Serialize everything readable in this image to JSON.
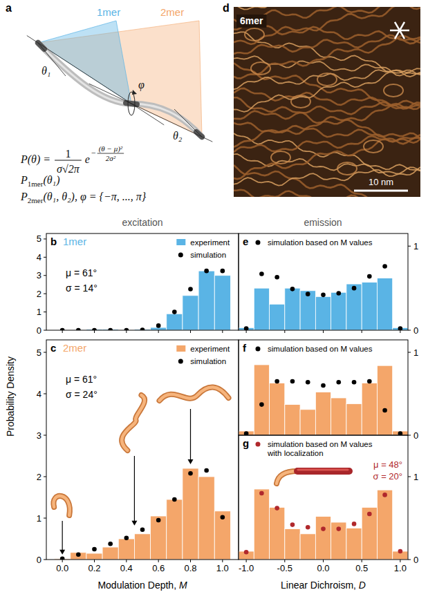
{
  "figure": {
    "column_titles": [
      "excitation",
      "emission"
    ],
    "y_title": "Probability Density"
  },
  "diagram": {
    "panel": "a",
    "regions": [
      {
        "label": "1mer",
        "color": "#5ab4e5"
      },
      {
        "label": "2mer",
        "color": "#f4a66a"
      }
    ],
    "angles": [
      "θ₁",
      "θ₂",
      "φ"
    ],
    "formula": {
      "lhs": "P(θ) =",
      "numerator": "1",
      "denominator": "σ√2π",
      "base": "e",
      "exponent_sign": "−",
      "exponent_numerator": "(θ − μ)²",
      "exponent_denominator": "2σ²"
    },
    "distributions": [
      {
        "symbol": "P",
        "subscript": "1mer",
        "args": "(θ₁)"
      },
      {
        "symbol": "P",
        "subscript": "2mer",
        "args": "(θ₁, θ₂), φ = {−π, ..., π}"
      }
    ]
  },
  "image": {
    "panel": "d",
    "label": "6mer",
    "scale_bar": "10 nm"
  },
  "chart_data": [
    {
      "type": "histogram",
      "panel": "b",
      "title": "1mer",
      "bins": [
        -0.05,
        0.05,
        0.15,
        0.25,
        0.35,
        0.45,
        0.55,
        0.65,
        0.75,
        0.85,
        0.95,
        1.05
      ],
      "series": [
        {
          "name": "experiment",
          "type": "bar",
          "color": "#5ab4e5",
          "values": [
            0,
            0,
            0.05,
            0.05,
            0.02,
            0.05,
            0.15,
            0.9,
            1.9,
            3.25,
            3.0
          ]
        },
        {
          "name": "simulation",
          "type": "scatter",
          "color": "#000000",
          "marker": "circle",
          "x": [
            0,
            0.1,
            0.2,
            0.3,
            0.4,
            0.5,
            0.6,
            0.7,
            0.8,
            0.9,
            1.0
          ],
          "values": [
            0,
            0,
            0,
            0,
            0,
            0.02,
            0.25,
            1.0,
            2.25,
            3.25,
            3.25
          ]
        }
      ],
      "xlim": [
        -0.1,
        1.1
      ],
      "xticks": [
        {
          "value": 0,
          "label": "0.0"
        },
        0.2,
        0.4,
        0.6,
        0.8,
        {
          "value": 1,
          "label": "1.0"
        }
      ],
      "ylim": [
        0,
        5.3
      ],
      "yticks": [
        0,
        1,
        2,
        3,
        4,
        5
      ],
      "tick_labels": "y",
      "legend": "upper right",
      "annotations": [
        {
          "text": "μ = 61°"
        },
        {
          "text": "σ = 14°"
        }
      ]
    },
    {
      "type": "histogram",
      "panel": "c",
      "title": "2mer",
      "bins": [
        -0.05,
        0.05,
        0.15,
        0.25,
        0.35,
        0.45,
        0.55,
        0.65,
        0.75,
        0.85,
        0.95,
        1.05
      ],
      "series": [
        {
          "name": "experiment",
          "type": "bar",
          "color": "#f4a66a",
          "values": [
            0.02,
            0.17,
            0.15,
            0.3,
            0.5,
            0.62,
            1.05,
            1.45,
            2.2,
            2.0,
            1.17
          ]
        },
        {
          "name": "simulation",
          "type": "scatter",
          "color": "#000000",
          "marker": "circle",
          "x": [
            0,
            0.1,
            0.2,
            0.3,
            0.4,
            0.5,
            0.6,
            0.7,
            0.8,
            0.9,
            1.0
          ],
          "values": [
            0.02,
            0.12,
            0.25,
            0.38,
            0.52,
            0.72,
            0.95,
            1.45,
            2.08,
            2.15,
            1.02
          ]
        }
      ],
      "xlim": [
        -0.1,
        1.1
      ],
      "xticks": [
        {
          "value": 0,
          "label": "0.0"
        },
        0.2,
        0.4,
        0.6,
        0.8,
        {
          "value": 1,
          "label": "1.0"
        }
      ],
      "ylim": [
        0,
        5.3
      ],
      "yticks": [
        0,
        1,
        2,
        3,
        4,
        5
      ],
      "legend": "upper right",
      "xlabel": "Modulation Depth, M",
      "annotations": [
        {
          "text": "μ = 61°"
        },
        {
          "text": "σ = 24°"
        }
      ],
      "arrows": [
        0.0,
        0.45,
        0.8
      ]
    },
    {
      "type": "histogram",
      "panel": "e",
      "bins": [
        -1.1,
        -0.9,
        -0.7,
        -0.5,
        -0.3,
        -0.1,
        0.1,
        0.3,
        0.5,
        0.7,
        0.9,
        1.1
      ],
      "series": [
        {
          "type": "bar",
          "color": "#5ab4e5",
          "axis": "y2",
          "values": [
            0.03,
            0.5,
            0.31,
            0.5,
            0.47,
            0.4,
            0.45,
            0.55,
            0.57,
            0.62,
            0.03
          ]
        },
        {
          "name": "simulation based on M values",
          "type": "scatter",
          "color": "#000000",
          "marker": "circle",
          "axis": "y2",
          "x": [
            -1,
            -0.8,
            -0.6,
            -0.4,
            -0.2,
            0,
            0.2,
            0.4,
            0.6,
            0.8,
            1
          ],
          "values": [
            0.02,
            0.67,
            0.63,
            0.49,
            0.43,
            0.42,
            0.44,
            0.5,
            0.64,
            0.76,
            0.02
          ]
        }
      ],
      "xlim": [
        -1.1,
        1.1
      ],
      "xticks": [
        {
          "value": -1,
          "label": "-1.0"
        },
        -0.5,
        {
          "value": 0,
          "label": "0.0"
        },
        0.5,
        {
          "value": 1,
          "label": "1.0"
        }
      ],
      "y2lim": [
        0,
        1.15
      ],
      "y2ticks": [
        0,
        1
      ],
      "tick_labels": "y",
      "legend": "upper left"
    },
    {
      "type": "histogram",
      "panel": "f",
      "bins": [
        -1.1,
        -0.9,
        -0.7,
        -0.5,
        -0.3,
        -0.1,
        0.1,
        0.3,
        0.5,
        0.7,
        0.9,
        1.1
      ],
      "series": [
        {
          "type": "bar",
          "color": "#f4a66a",
          "axis": "y2",
          "values": [
            0.05,
            0.85,
            0.63,
            0.37,
            0.31,
            0.52,
            0.45,
            0.38,
            0.63,
            0.84,
            0.05
          ]
        },
        {
          "name": "simulation based on M values",
          "type": "scatter",
          "color": "#000000",
          "marker": "circle",
          "axis": "y2",
          "x": [
            -1,
            -0.8,
            -0.6,
            -0.4,
            -0.2,
            0,
            0.2,
            0.4,
            0.6,
            0.8,
            1
          ],
          "values": [
            0.02,
            0.37,
            0.65,
            0.65,
            0.64,
            0.6,
            0.64,
            0.64,
            0.65,
            0.3,
            0.02
          ]
        }
      ],
      "xlim": [
        -1.1,
        1.1
      ],
      "y2lim": [
        0,
        1.15
      ],
      "y2ticks": [
        0,
        1
      ],
      "tick_labels": "y",
      "legend": "upper left"
    },
    {
      "type": "histogram",
      "panel": "g",
      "bins": [
        -1.1,
        -0.9,
        -0.7,
        -0.5,
        -0.3,
        -0.1,
        0.1,
        0.3,
        0.5,
        0.7,
        0.9,
        1.1
      ],
      "series": [
        {
          "type": "bar",
          "color": "#f4a66a",
          "axis": "y2",
          "values": [
            0.1,
            0.85,
            0.63,
            0.37,
            0.31,
            0.52,
            0.45,
            0.38,
            0.63,
            0.84,
            0.1
          ]
        },
        {
          "name": "simulation based on M values with localization",
          "type": "scatter",
          "color": "#b0282c",
          "marker": "circle",
          "axis": "y2",
          "x": [
            -1,
            -0.8,
            -0.6,
            -0.4,
            -0.2,
            0,
            0.2,
            0.4,
            0.6,
            0.8,
            1
          ],
          "values": [
            0.09,
            0.8,
            0.62,
            0.42,
            0.39,
            0.37,
            0.37,
            0.43,
            0.55,
            0.78,
            0.1
          ]
        }
      ],
      "xlim": [
        -1.1,
        1.1
      ],
      "xticks": [
        {
          "value": -1,
          "label": "-1.0"
        },
        -0.5,
        {
          "value": 0,
          "label": "0.0"
        },
        0.5,
        {
          "value": 1,
          "label": "1.0"
        }
      ],
      "y2lim": [
        0,
        1.5
      ],
      "y2ticks": [
        0,
        1
      ],
      "legend": "upper left",
      "xlabel": "Linear Dichroism, D",
      "annotations": [
        {
          "text": "μ = 48°",
          "color": "#b0282c"
        },
        {
          "text": "σ = 20°",
          "color": "#b0282c"
        }
      ]
    }
  ]
}
